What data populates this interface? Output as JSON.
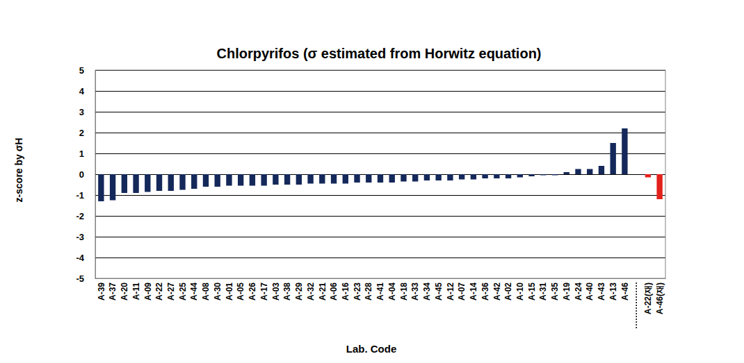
{
  "chart_data": {
    "type": "bar",
    "title": "Chlorpyrifos (σ  estimated from Horwitz equation)",
    "x_label": "Lab. Code",
    "y_label": "z-score by σH",
    "categories": [
      "A-39",
      "A-37",
      "A-20",
      "A-11",
      "A-09",
      "A-22",
      "A-27",
      "A-25",
      "A-44",
      "A-08",
      "A-30",
      "A-01",
      "A-05",
      "A-26",
      "A-17",
      "A-03",
      "A-38",
      "A-29",
      "A-32",
      "A-21",
      "A-06",
      "A-16",
      "A-23",
      "A-28",
      "A-41",
      "A-04",
      "A-18",
      "A-33",
      "A-34",
      "A-45",
      "A-12",
      "A-07",
      "A-14",
      "A-36",
      "A-42",
      "A-02",
      "A-10",
      "A-15",
      "A-31",
      "A-35",
      "A-19",
      "A-24",
      "A-40",
      "A-43",
      "A-13",
      "A-46",
      null,
      "A-22(재)",
      "A-46(재)"
    ],
    "values": [
      -1.3,
      -1.25,
      -0.9,
      -0.9,
      -0.85,
      -0.8,
      -0.8,
      -0.75,
      -0.7,
      -0.6,
      -0.6,
      -0.55,
      -0.55,
      -0.55,
      -0.55,
      -0.5,
      -0.5,
      -0.5,
      -0.45,
      -0.45,
      -0.45,
      -0.45,
      -0.4,
      -0.4,
      -0.4,
      -0.4,
      -0.35,
      -0.35,
      -0.3,
      -0.3,
      -0.3,
      -0.25,
      -0.25,
      -0.2,
      -0.2,
      -0.2,
      -0.15,
      -0.1,
      -0.05,
      -0.05,
      0.1,
      0.25,
      0.25,
      0.4,
      1.5,
      2.2,
      null,
      -0.15,
      -1.2
    ],
    "colors": [
      "#14285a",
      "#14285a",
      "#14285a",
      "#14285a",
      "#14285a",
      "#14285a",
      "#14285a",
      "#14285a",
      "#14285a",
      "#14285a",
      "#14285a",
      "#14285a",
      "#14285a",
      "#14285a",
      "#14285a",
      "#14285a",
      "#14285a",
      "#14285a",
      "#14285a",
      "#14285a",
      "#14285a",
      "#14285a",
      "#14285a",
      "#14285a",
      "#14285a",
      "#14285a",
      "#14285a",
      "#14285a",
      "#14285a",
      "#14285a",
      "#14285a",
      "#14285a",
      "#14285a",
      "#14285a",
      "#14285a",
      "#14285a",
      "#14285a",
      "#14285a",
      "#14285a",
      "#14285a",
      "#14285a",
      "#14285a",
      "#14285a",
      "#14285a",
      "#14285a",
      "#14285a",
      "#14285a",
      "#e3211b",
      "#e3211b"
    ],
    "ylim": [
      -5,
      5
    ],
    "yticks": [
      -5,
      -4,
      -3,
      -2,
      -1,
      0,
      1,
      2,
      3,
      4,
      5
    ],
    "grid": true
  }
}
